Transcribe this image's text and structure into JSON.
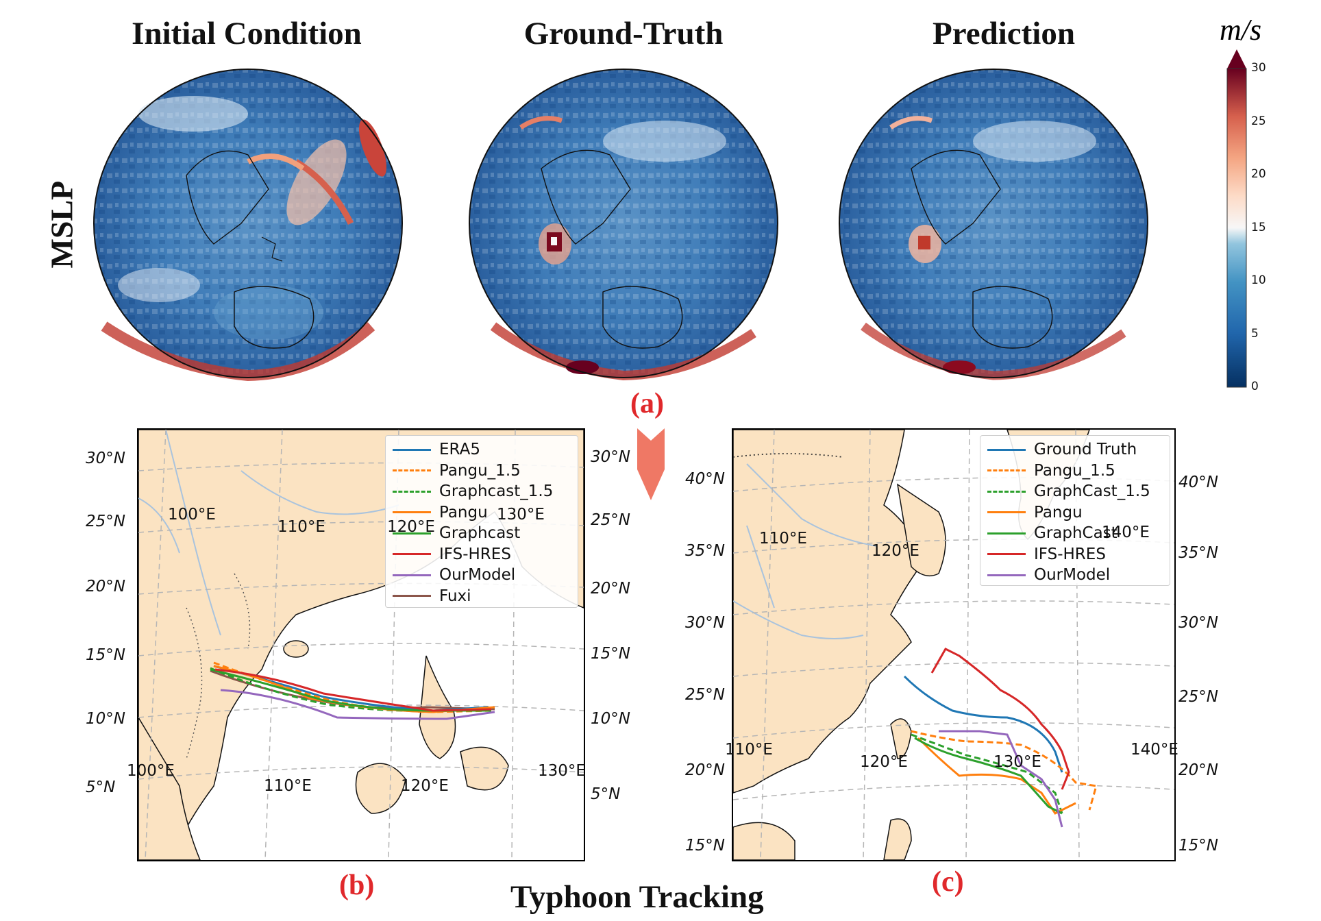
{
  "panel_titles": {
    "initial": "Initial Condition",
    "truth": "Ground-Truth",
    "prediction": "Prediction"
  },
  "row_label": "MSLP",
  "colorbar": {
    "unit": "m/s",
    "ticks": [
      "30",
      "25",
      "20",
      "15",
      "10",
      "5",
      "0"
    ],
    "colormap": "RdBu_r",
    "range": [
      0,
      30
    ]
  },
  "panel_letters": {
    "a": "(a)",
    "b": "(b)",
    "c": "(c)"
  },
  "bottom_title": "Typhoon Tracking",
  "colors": {
    "land": "#fbe3c2",
    "river": "#a9c3dd",
    "grid": "#b5b5b5",
    "arrow": "#ef7865",
    "letter_red": "#e0282b"
  },
  "map_b": {
    "lat_left": [
      "30°N",
      "25°N",
      "20°N",
      "15°N",
      "10°N",
      "5°N"
    ],
    "lat_right": [
      "30°N",
      "25°N",
      "20°N",
      "15°N",
      "10°N",
      "5°N"
    ],
    "lon_labels": [
      "100°E",
      "110°E",
      "120°E",
      "130°E",
      "100°E",
      "110°E",
      "120°E",
      "130°E"
    ],
    "legend": [
      {
        "label": "ERA5",
        "color": "#1f77b4",
        "style": "solid"
      },
      {
        "label": "Pangu_1.5",
        "color": "#ff7f0e",
        "style": "dashed"
      },
      {
        "label": "Graphcast_1.5",
        "color": "#2ca02c",
        "style": "dashed"
      },
      {
        "label": "Pangu",
        "color": "#ff7f0e",
        "style": "solid"
      },
      {
        "label": "Graphcast",
        "color": "#2ca02c",
        "style": "solid"
      },
      {
        "label": "IFS-HRES",
        "color": "#d62728",
        "style": "solid"
      },
      {
        "label": "OurModel",
        "color": "#9467bd",
        "style": "solid"
      },
      {
        "label": "Fuxi",
        "color": "#8c564b",
        "style": "solid"
      }
    ]
  },
  "map_c": {
    "lat_left": [
      "40°N",
      "35°N",
      "30°N",
      "25°N",
      "20°N",
      "15°N"
    ],
    "lat_right": [
      "40°N",
      "35°N",
      "30°N",
      "25°N",
      "20°N",
      "15°N"
    ],
    "lon_labels": [
      "110°E",
      "120°E",
      "140°E",
      "110°E",
      "120°E",
      "130°E",
      "140°E"
    ],
    "legend": [
      {
        "label": "Ground Truth",
        "color": "#1f77b4",
        "style": "solid"
      },
      {
        "label": "Pangu_1.5",
        "color": "#ff7f0e",
        "style": "dashed"
      },
      {
        "label": "GraphCast_1.5",
        "color": "#2ca02c",
        "style": "dashed"
      },
      {
        "label": "Pangu",
        "color": "#ff7f0e",
        "style": "solid"
      },
      {
        "label": "GraphCast",
        "color": "#2ca02c",
        "style": "solid"
      },
      {
        "label": "IFS-HRES",
        "color": "#d62728",
        "style": "solid"
      },
      {
        "label": "OurModel",
        "color": "#9467bd",
        "style": "solid"
      }
    ]
  }
}
